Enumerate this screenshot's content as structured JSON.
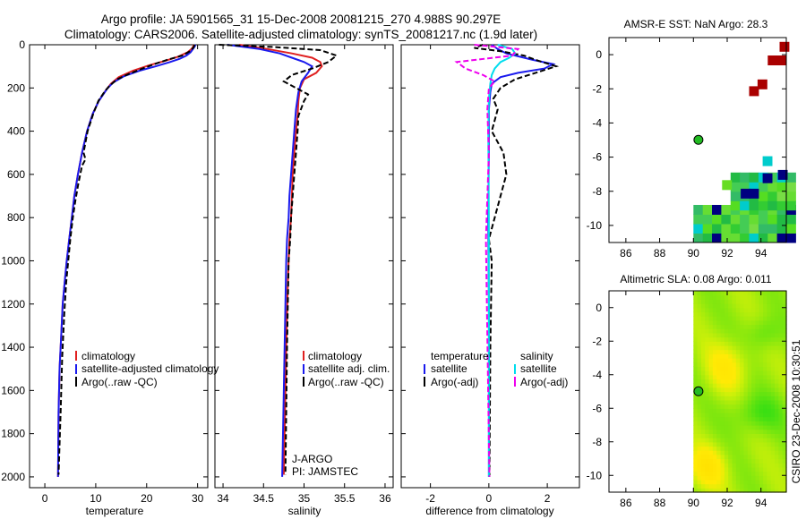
{
  "title_line1": "Argo profile: JA 5901565_31 15-Dec-2008 20081215_270 4.988S 90.297E",
  "title_line2": "Climatology: CARS2006. Satellite-adjusted climatology: synTS_20081217.nc (1.9d later)",
  "side_label": "CSIRO 23-Dec-2008 10:30:51",
  "colors": {
    "climatology": "#e02020",
    "satellite": "#1a1aee",
    "argo": "#000000",
    "sal_sat": "#00ddee",
    "sal_argo": "#ee00ee",
    "sst_high": "#aa0000",
    "sst_navy": "#000080",
    "sst_cyan": "#00cccc",
    "point_fill": "#22bb22"
  },
  "chart_data": [
    {
      "id": "temperature",
      "type": "line",
      "xlabel": "temperature",
      "ylabel": "",
      "xlim": [
        -3,
        32
      ],
      "ylim": [
        0,
        2050
      ],
      "y_inverted": true,
      "xticks": [
        0,
        10,
        20,
        30
      ],
      "yticks": [
        0,
        200,
        400,
        600,
        800,
        1000,
        1200,
        1400,
        1600,
        1800,
        2000
      ],
      "series": [
        {
          "name": "climatology",
          "color": "#e02020",
          "style": "solid",
          "x": [
            29.3,
            29.1,
            28.8,
            28.0,
            26.2,
            23.6,
            20.5,
            17.3,
            14.5,
            13.0,
            12.0,
            10.6,
            9.4,
            8.3,
            7.3,
            6.5,
            5.8,
            5.3,
            4.8,
            4.3,
            3.9,
            3.5,
            3.2,
            2.9,
            2.7,
            2.6
          ],
          "y": [
            0,
            10,
            20,
            35,
            55,
            75,
            95,
            120,
            150,
            180,
            210,
            260,
            320,
            400,
            500,
            600,
            700,
            800,
            900,
            1000,
            1100,
            1200,
            1350,
            1500,
            1700,
            2000
          ]
        },
        {
          "name": "satellite-adjusted climatology",
          "color": "#1a1aee",
          "style": "solid",
          "x": [
            29.6,
            29.4,
            29.1,
            28.6,
            27.8,
            26.5,
            24.6,
            21.8,
            18.6,
            15.6,
            13.4,
            12.2,
            10.6,
            9.4,
            8.3,
            7.3,
            6.5,
            5.8,
            5.3,
            4.8,
            4.3,
            3.9,
            3.5,
            3.2,
            2.9,
            2.7,
            2.6
          ],
          "y": [
            0,
            10,
            20,
            35,
            50,
            65,
            80,
            100,
            120,
            145,
            175,
            205,
            260,
            320,
            400,
            500,
            600,
            700,
            800,
            900,
            1000,
            1100,
            1200,
            1350,
            1500,
            1700,
            2000
          ]
        },
        {
          "name": "Argo(..raw -QC)",
          "color": "#000000",
          "style": "dashed",
          "x": [
            29.4,
            29.2,
            28.5,
            27.0,
            24.0,
            21.5,
            19.2,
            16.5,
            14.2,
            12.7,
            11.8,
            10.5,
            9.5,
            8.4,
            7.6,
            8.0,
            7.3,
            6.6,
            6.0,
            5.5,
            5.0,
            4.6,
            4.2,
            3.8,
            3.4,
            3.1,
            2.7
          ],
          "y": [
            0,
            12,
            30,
            50,
            70,
            90,
            110,
            135,
            160,
            190,
            215,
            260,
            320,
            400,
            500,
            530,
            560,
            640,
            720,
            800,
            900,
            1000,
            1100,
            1250,
            1450,
            1700,
            1990
          ]
        }
      ],
      "legend": [
        "climatology",
        "satellite-adjusted climatology",
        "Argo(..raw -QC)"
      ],
      "legend_position": "lower-middle"
    },
    {
      "id": "salinity",
      "type": "line",
      "xlabel": "salinity",
      "ylabel": "",
      "xlim": [
        33.9,
        36.1
      ],
      "ylim": [
        0,
        2050
      ],
      "y_inverted": true,
      "xticks": [
        34,
        34.5,
        35,
        35.5,
        36
      ],
      "xticklabels": [
        "34",
        "34.5",
        "35",
        "35.5",
        "36"
      ],
      "series": [
        {
          "name": "climatology",
          "color": "#e02020",
          "style": "solid",
          "x": [
            34.2,
            34.55,
            34.85,
            35.1,
            35.2,
            35.22,
            35.15,
            35.0,
            34.95,
            34.93,
            34.92,
            34.9,
            34.88,
            34.86,
            34.85,
            34.84,
            34.82,
            34.81,
            34.8,
            34.79,
            34.78,
            34.77,
            34.76,
            34.75
          ],
          "y": [
            0,
            20,
            40,
            60,
            80,
            100,
            130,
            160,
            200,
            260,
            330,
            400,
            500,
            600,
            700,
            800,
            900,
            1000,
            1100,
            1250,
            1400,
            1600,
            1800,
            1990
          ]
        },
        {
          "name": "satellite adj. clim.",
          "color": "#1a1aee",
          "style": "solid",
          "x": [
            34.05,
            34.45,
            34.7,
            34.85,
            35.0,
            35.1,
            35.05,
            34.97,
            34.93,
            34.9,
            34.88,
            34.86,
            34.84,
            34.82,
            34.81,
            34.79,
            34.78,
            34.77,
            34.76,
            34.75,
            34.74,
            34.73
          ],
          "y": [
            0,
            20,
            40,
            60,
            80,
            100,
            130,
            170,
            220,
            300,
            400,
            500,
            600,
            700,
            800,
            900,
            1000,
            1200,
            1400,
            1600,
            1800,
            2000
          ]
        },
        {
          "name": "Argo(..raw -QC)",
          "color": "#000000",
          "style": "dashed",
          "x": [
            33.95,
            34.6,
            35.2,
            35.4,
            35.3,
            35.1,
            34.85,
            34.75,
            34.9,
            35.05,
            35.0,
            34.93,
            34.92,
            34.9,
            34.88,
            34.86,
            34.84,
            34.83,
            34.81,
            34.8,
            34.79,
            34.78,
            34.77
          ],
          "y": [
            0,
            10,
            25,
            50,
            80,
            110,
            140,
            170,
            200,
            230,
            260,
            330,
            400,
            500,
            600,
            700,
            800,
            900,
            1000,
            1200,
            1400,
            1700,
            1990
          ]
        }
      ],
      "legend": [
        "climatology",
        "satellite adj. clim.",
        "Argo(..raw -QC)"
      ],
      "legend_position": "lower-middle",
      "annotations": [
        "J-ARGO",
        "PI: JAMSTEC"
      ]
    },
    {
      "id": "difference",
      "type": "line",
      "xlabel": "difference from climatology",
      "ylabel": "",
      "xlim": [
        -3,
        3.1
      ],
      "ylim": [
        0,
        2050
      ],
      "y_inverted": true,
      "xticks": [
        -2,
        0,
        2
      ],
      "series": [
        {
          "name": "temperature satellite",
          "color": "#1a1aee",
          "style": "solid",
          "x": [
            0.1,
            0.3,
            0.6,
            1.5,
            2.2,
            1.9,
            1.0,
            0.4,
            0.1,
            0.05,
            0.0,
            0.0,
            -0.02,
            0.0,
            0.0,
            0.0
          ],
          "y": [
            0,
            20,
            40,
            70,
            90,
            110,
            130,
            150,
            180,
            220,
            300,
            500,
            800,
            1200,
            1600,
            2000
          ]
        },
        {
          "name": "temperature Argo(-adj)",
          "color": "#000000",
          "style": "dashed",
          "x": [
            -0.2,
            -0.5,
            0.4,
            1.2,
            1.6,
            2.3,
            1.6,
            0.9,
            0.4,
            0.15,
            0.3,
            0.1,
            0.5,
            0.6,
            0.4,
            0.2,
            0.0,
            0.1,
            0.05,
            0.02
          ],
          "y": [
            0,
            15,
            30,
            50,
            70,
            100,
            130,
            160,
            200,
            250,
            300,
            400,
            500,
            600,
            700,
            800,
            900,
            1000,
            1400,
            2000
          ]
        },
        {
          "name": "salinity satellite",
          "color": "#00ddee",
          "style": "solid",
          "x": [
            0.3,
            0.8,
            0.9,
            0.7,
            0.4,
            0.2,
            0.1,
            0.05,
            0.0,
            -0.02,
            0.0,
            0.0
          ],
          "y": [
            0,
            20,
            40,
            60,
            80,
            110,
            140,
            180,
            250,
            400,
            800,
            2000
          ]
        },
        {
          "name": "salinity Argo(-adj)",
          "color": "#ee00ee",
          "style": "dashed",
          "x": [
            -0.5,
            1.0,
            0.8,
            -1.1,
            -0.8,
            -0.2,
            0.2,
            0.0,
            -0.05,
            0.0,
            -0.1,
            0.02
          ],
          "y": [
            0,
            20,
            50,
            80,
            110,
            140,
            170,
            200,
            300,
            500,
            900,
            2000
          ]
        }
      ],
      "legend_groups": [
        {
          "title": "temperature",
          "items": [
            "satellite",
            "Argo(-adj)"
          ]
        },
        {
          "title": "salinity",
          "items": [
            "satellite",
            "Argo(-adj)"
          ]
        }
      ],
      "legend_position": "lower-middle"
    },
    {
      "id": "sst_map",
      "type": "heatmap",
      "title": "AMSR-E SST: NaN Argo: 28.3",
      "xlim": [
        85,
        95.5
      ],
      "ylim": [
        -11,
        1
      ],
      "xticks": [
        86,
        88,
        90,
        92,
        94
      ],
      "yticks": [
        0,
        -2,
        -4,
        -6,
        -8,
        -10
      ],
      "argo_point": {
        "lon": 90.297,
        "lat": -4.988
      }
    },
    {
      "id": "sla_map",
      "type": "heatmap",
      "title": "Altimetric SLA: 0.08 Argo: 0.011",
      "xlim": [
        85,
        95.5
      ],
      "ylim": [
        -11,
        1
      ],
      "xticks": [
        86,
        88,
        90,
        92,
        94
      ],
      "yticks": [
        0,
        -2,
        -4,
        -6,
        -8,
        -10
      ],
      "data_lon_range": [
        90,
        95.5
      ],
      "argo_point": {
        "lon": 90.297,
        "lat": -4.988
      }
    }
  ]
}
